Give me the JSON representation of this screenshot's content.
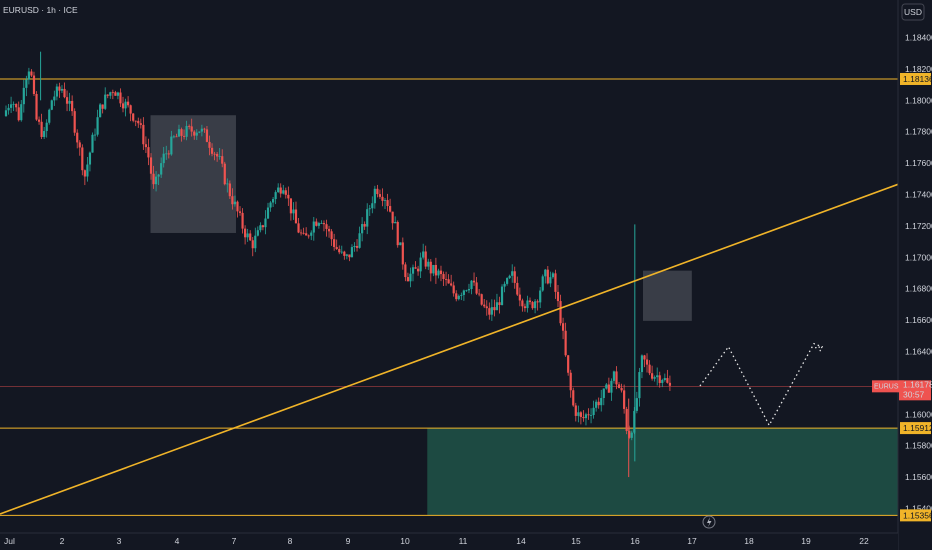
{
  "chart_data": {
    "type": "candlestick",
    "title": "EURUSD · 1h · ICE",
    "currency_button": "USD",
    "symbol_tag": "EURUSD",
    "current_price": "1.16178",
    "countdown": "30:57",
    "y_ticks": [
      "1.18400",
      "1.18200",
      "1.18000",
      "1.17800",
      "1.17600",
      "1.17400",
      "1.17200",
      "1.17000",
      "1.16800",
      "1.16600",
      "1.16400",
      "1.16000",
      "1.15800",
      "1.15600",
      "1.15400"
    ],
    "x_ticks": [
      "Jul",
      "2",
      "3",
      "4",
      "7",
      "8",
      "9",
      "10",
      "11",
      "14",
      "15",
      "16",
      "17",
      "18",
      "19",
      "22"
    ],
    "ylim": [
      1.1525,
      1.1855
    ],
    "horizontal_levels": [
      {
        "value": 1.18136,
        "label": "1.18136",
        "color": "#f0b429"
      },
      {
        "value": 1.15912,
        "label": "1.15912",
        "color": "#f0b429"
      },
      {
        "value": 1.15356,
        "label": "1.15356",
        "color": "#f0b429"
      }
    ],
    "trendline": {
      "from": {
        "x": "Jul",
        "y": 1.15365
      },
      "to": {
        "x": "22",
        "y": 1.17465
      },
      "color": "#f0b429"
    },
    "zones": [
      {
        "kind": "consolidation",
        "x_from": 3.6,
        "x_to": 5.7,
        "y_from": 1.17155,
        "y_to": 1.17905,
        "color": "#5a5d66"
      },
      {
        "kind": "consolidation",
        "x_from": 15.7,
        "x_to": 16.9,
        "y_from": 1.16595,
        "y_to": 1.16915,
        "color": "#5a5d66"
      },
      {
        "kind": "demand",
        "x_from": 10.4,
        "x_to": 23.5,
        "y_from": 1.15356,
        "y_to": 1.15912,
        "color": "#1e4d45"
      }
    ],
    "projection": [
      {
        "x": 17.1,
        "y": 1.1618
      },
      {
        "x": 17.8,
        "y": 1.1643
      },
      {
        "x": 18.8,
        "y": 1.1593
      },
      {
        "x": 19.9,
        "y": 1.1645
      },
      {
        "x": 20.1,
        "y": 1.1643
      }
    ],
    "up_color": "#26a69a",
    "down_color": "#ef5350",
    "price_line_color": "#ef5350",
    "price_action_keyframes": [
      [
        0.0,
        1.179
      ],
      [
        0.2,
        1.1802
      ],
      [
        0.4,
        1.1788
      ],
      [
        0.5,
        1.1812
      ],
      [
        0.65,
        1.1823
      ],
      [
        0.8,
        1.1788
      ],
      [
        1.0,
        1.1777
      ],
      [
        1.2,
        1.1802
      ],
      [
        1.45,
        1.1808
      ],
      [
        1.7,
        1.179
      ],
      [
        2.0,
        1.1752
      ],
      [
        2.2,
        1.1776
      ],
      [
        2.4,
        1.1797
      ],
      [
        2.7,
        1.1808
      ],
      [
        3.0,
        1.1797
      ],
      [
        3.3,
        1.1787
      ],
      [
        3.55,
        1.1766
      ],
      [
        3.7,
        1.1742
      ],
      [
        3.9,
        1.1762
      ],
      [
        4.2,
        1.1776
      ],
      [
        4.5,
        1.178
      ],
      [
        4.8,
        1.1782
      ],
      [
        5.0,
        1.1776
      ],
      [
        5.3,
        1.1762
      ],
      [
        5.5,
        1.1745
      ],
      [
        5.7,
        1.1732
      ],
      [
        5.9,
        1.1718
      ],
      [
        6.1,
        1.1708
      ],
      [
        6.3,
        1.1716
      ],
      [
        6.6,
        1.1738
      ],
      [
        6.9,
        1.1748
      ],
      [
        7.0,
        1.1736
      ],
      [
        7.2,
        1.172
      ],
      [
        7.4,
        1.171
      ],
      [
        7.6,
        1.1722
      ],
      [
        7.8,
        1.1726
      ],
      [
        8.0,
        1.1715
      ],
      [
        8.2,
        1.1705
      ],
      [
        8.4,
        1.1698
      ],
      [
        8.6,
        1.1706
      ],
      [
        8.8,
        1.1716
      ],
      [
        9.0,
        1.1732
      ],
      [
        9.15,
        1.1745
      ],
      [
        9.4,
        1.1738
      ],
      [
        9.6,
        1.1722
      ],
      [
        9.75,
        1.1705
      ],
      [
        9.9,
        1.1688
      ],
      [
        10.1,
        1.169
      ],
      [
        10.3,
        1.17
      ],
      [
        10.5,
        1.1692
      ],
      [
        10.7,
        1.1689
      ],
      [
        10.9,
        1.1683
      ],
      [
        11.1,
        1.1676
      ],
      [
        11.3,
        1.168
      ],
      [
        11.5,
        1.1685
      ],
      [
        11.7,
        1.1672
      ],
      [
        11.9,
        1.1664
      ],
      [
        12.1,
        1.1668
      ],
      [
        12.3,
        1.168
      ],
      [
        12.5,
        1.1688
      ],
      [
        12.7,
        1.1675
      ],
      [
        12.9,
        1.1668
      ],
      [
        13.1,
        1.1674
      ],
      [
        13.3,
        1.1688
      ],
      [
        13.5,
        1.1686
      ],
      [
        13.7,
        1.166
      ],
      [
        13.85,
        1.1628
      ],
      [
        14.0,
        1.1605
      ],
      [
        14.2,
        1.1596
      ],
      [
        14.4,
        1.1602
      ],
      [
        14.6,
        1.1608
      ],
      [
        14.8,
        1.1614
      ],
      [
        15.0,
        1.1625
      ],
      [
        15.2,
        1.1612
      ],
      [
        15.35,
        1.1585
      ],
      [
        15.5,
        1.1598
      ],
      [
        15.6,
        1.1618
      ],
      [
        15.7,
        1.1636
      ],
      [
        15.85,
        1.1628
      ],
      [
        16.0,
        1.1625
      ],
      [
        16.2,
        1.1624
      ],
      [
        16.35,
        1.1617
      ]
    ]
  }
}
